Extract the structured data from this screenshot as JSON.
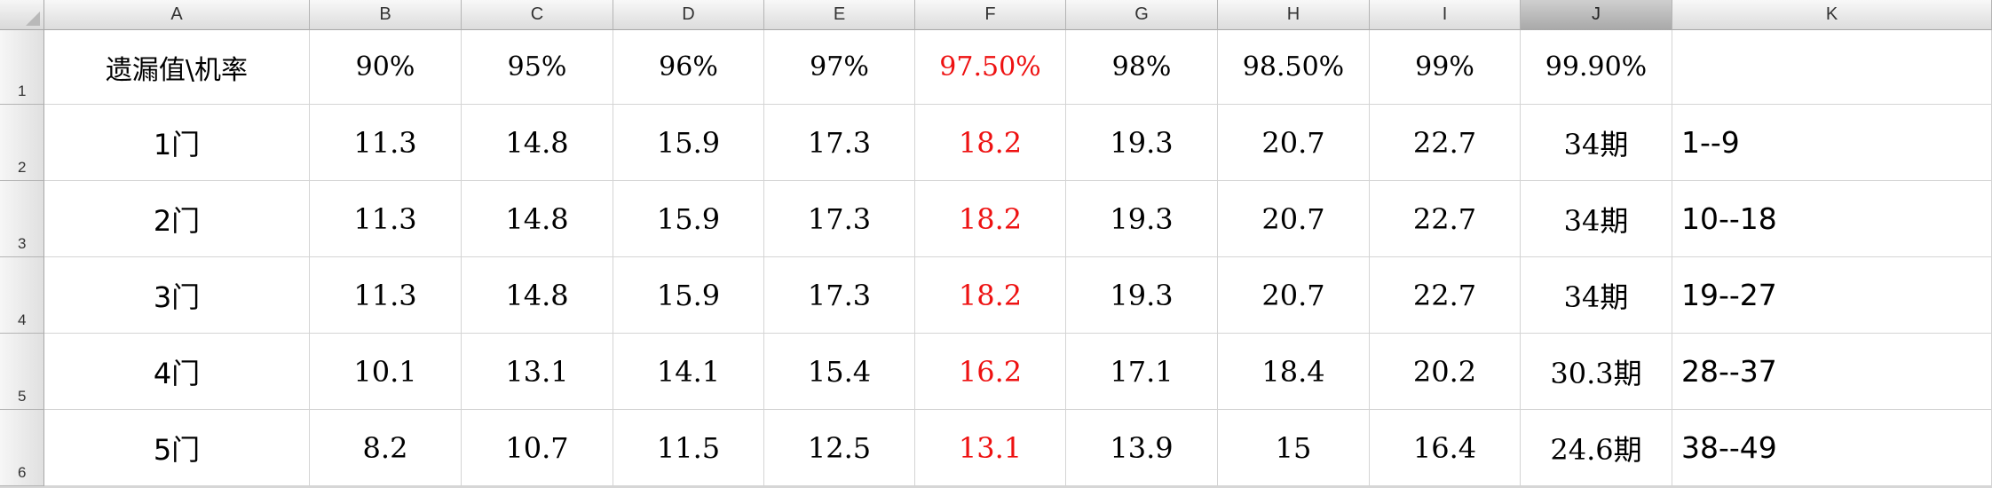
{
  "columns": [
    "A",
    "B",
    "C",
    "D",
    "E",
    "F",
    "G",
    "H",
    "I",
    "J",
    "K"
  ],
  "rows": [
    {
      "num": "1",
      "cells": [
        "遗漏值\\机率",
        "90%",
        "95%",
        "96%",
        "97%",
        "97.50%",
        "98%",
        "98.50%",
        "99%",
        "99.90%",
        ""
      ]
    },
    {
      "num": "2",
      "cells": [
        "1门",
        "11.3",
        "14.8",
        "15.9",
        "17.3",
        "18.2",
        "19.3",
        "20.7",
        "22.7",
        "34期",
        "1--9"
      ]
    },
    {
      "num": "3",
      "cells": [
        "2门",
        "11.3",
        "14.8",
        "15.9",
        "17.3",
        "18.2",
        "19.3",
        "20.7",
        "22.7",
        "34期",
        "10--18"
      ]
    },
    {
      "num": "4",
      "cells": [
        "3门",
        "11.3",
        "14.8",
        "15.9",
        "17.3",
        "18.2",
        "19.3",
        "20.7",
        "22.7",
        "34期",
        "19--27"
      ]
    },
    {
      "num": "5",
      "cells": [
        "4门",
        "10.1",
        "13.1",
        "14.1",
        "15.4",
        "16.2",
        "17.1",
        "18.4",
        "20.2",
        "30.3期",
        "28--37"
      ]
    },
    {
      "num": "6",
      "cells": [
        "5门",
        "8.2",
        "10.7",
        "11.5",
        "12.5",
        "13.1",
        "13.9",
        "15",
        "16.4",
        "24.6期",
        "38--49"
      ]
    }
  ],
  "selected_column": "J",
  "highlight_column": "F",
  "colors": {
    "highlight_text": "#ee1111"
  }
}
